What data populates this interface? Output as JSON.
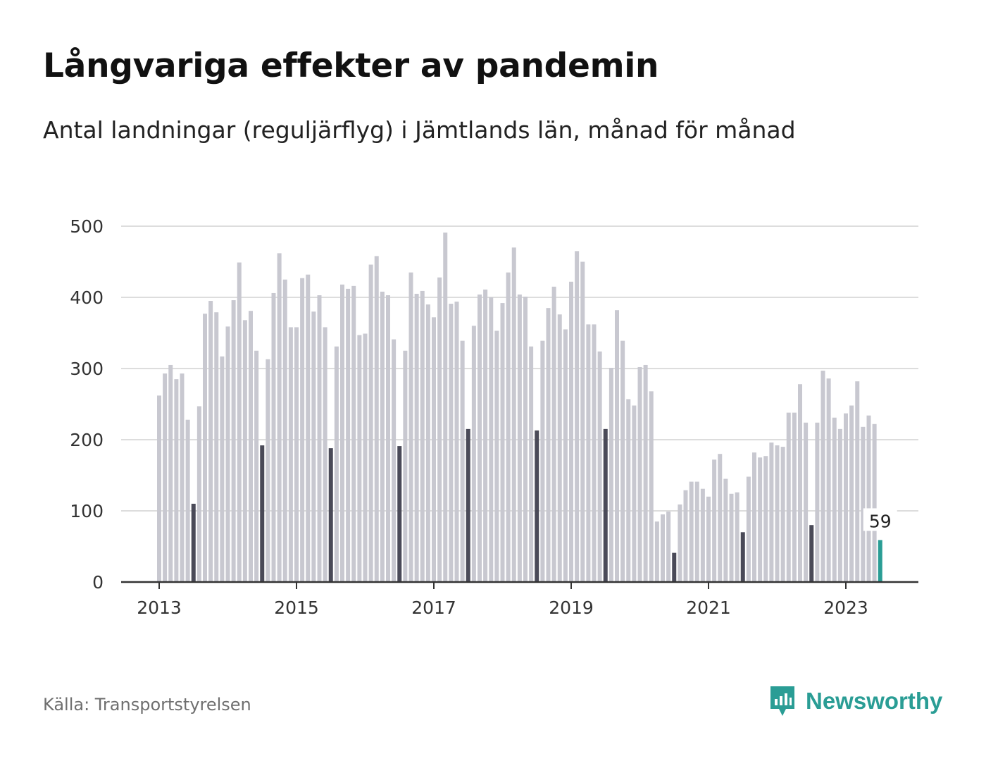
{
  "header": {
    "title": "Långvariga effekter av pandemin",
    "subtitle": "Antal landningar (reguljärflyg) i Jämtlands län, månad för månad"
  },
  "footer": {
    "source": "Källa: Transportstyrelsen",
    "brand": "Newsworthy"
  },
  "colors": {
    "bar": "#c8c8d0",
    "july_bar": "#4a4a58",
    "latest_bar": "#2a9d95",
    "grid": "#dddddd",
    "axis": "#333333",
    "brand": "#2a9d95"
  },
  "chart_data": {
    "type": "bar",
    "x_start": "2013-01",
    "interval": "month",
    "values": [
      262,
      293,
      305,
      285,
      293,
      228,
      110,
      247,
      377,
      395,
      379,
      317,
      359,
      396,
      449,
      368,
      381,
      325,
      192,
      313,
      406,
      462,
      425,
      358,
      358,
      427,
      432,
      380,
      403,
      358,
      188,
      331,
      418,
      412,
      416,
      347,
      349,
      446,
      458,
      408,
      403,
      341,
      191,
      325,
      435,
      405,
      409,
      390,
      372,
      428,
      491,
      391,
      394,
      339,
      215,
      360,
      404,
      411,
      400,
      353,
      392,
      435,
      470,
      404,
      401,
      331,
      213,
      339,
      385,
      415,
      376,
      355,
      422,
      465,
      450,
      362,
      362,
      324,
      215,
      301,
      382,
      339,
      257,
      248,
      302,
      305,
      268,
      85,
      95,
      99,
      41,
      109,
      129,
      141,
      141,
      131,
      120,
      172,
      180,
      145,
      124,
      126,
      70,
      148,
      182,
      175,
      177,
      196,
      192,
      190,
      238,
      238,
      278,
      224,
      80,
      224,
      297,
      286,
      231,
      215,
      237,
      248,
      282,
      218,
      234,
      222,
      59
    ],
    "x_ticks": [
      "2013",
      "2015",
      "2017",
      "2019",
      "2021",
      "2023"
    ],
    "y_ticks": [
      0,
      100,
      200,
      300,
      400,
      500
    ],
    "ylim": [
      0,
      500
    ],
    "highlight": "july",
    "last_label": "59",
    "grid": true,
    "xlabel": "",
    "ylabel": ""
  }
}
